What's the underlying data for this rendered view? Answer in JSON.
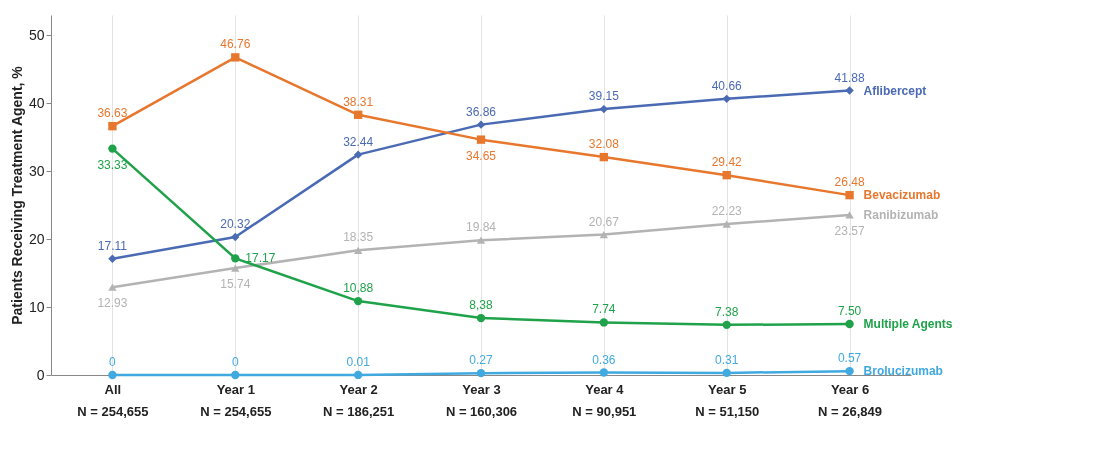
{
  "chart_data": {
    "type": "line",
    "ylabel": "Patients Receiving Treatment Agent, %",
    "categories": [
      "All\nN = 254,655",
      "Year 1\nN = 254,655",
      "Year 2\nN = 186,251",
      "Year 3\nN = 160,306",
      "Year 4\nN = 90,951",
      "Year 5\nN = 51,150",
      "Year 6\nN = 26,849"
    ],
    "series": [
      {
        "name": "Aflibercept",
        "color": "#4a6ab4",
        "marker": "diamond",
        "values": [
          17.11,
          20.32,
          32.44,
          36.86,
          39.15,
          40.66,
          41.88
        ],
        "value_labels": [
          "17.11",
          "20.32",
          "32.44",
          "36.86",
          "39.15",
          "40.66",
          "41.88"
        ]
      },
      {
        "name": "Bevacizumab",
        "color": "#e8772e",
        "marker": "square",
        "values": [
          36.63,
          46.76,
          38.31,
          34.65,
          32.08,
          29.42,
          26.48
        ],
        "value_labels": [
          "36.63",
          "46.76",
          "38.31",
          "34.65",
          "32.08",
          "29.42",
          "26.48"
        ]
      },
      {
        "name": "Ranibizumab",
        "color": "#b3b3b3",
        "marker": "triangle",
        "values": [
          12.93,
          15.74,
          18.35,
          19.84,
          20.67,
          22.23,
          23.57
        ],
        "value_labels": [
          "12.93",
          "15.74",
          "18.35",
          "19.84",
          "20.67",
          "22.23",
          "23.57"
        ]
      },
      {
        "name": "Multiple Agents",
        "color": "#1fa24a",
        "marker": "circle",
        "values": [
          33.33,
          17.17,
          10.88,
          8.38,
          7.74,
          7.38,
          7.5
        ],
        "value_labels": [
          "33.33",
          "17.17",
          "10,88",
          "8,38",
          "7.74",
          "7.38",
          "7.50"
        ]
      },
      {
        "name": "Brolucizumab",
        "color": "#3fa9e0",
        "marker": "circle",
        "values": [
          0,
          0,
          0.01,
          0.27,
          0.36,
          0.31,
          0.57
        ],
        "value_labels": [
          "0",
          "0",
          "0.01",
          "0.27",
          "0.36",
          "0.31",
          "0.57"
        ]
      }
    ],
    "ylim": [
      0,
      53
    ],
    "yticks": [
      0,
      10,
      20,
      30,
      40,
      50
    ],
    "grid": "x"
  }
}
